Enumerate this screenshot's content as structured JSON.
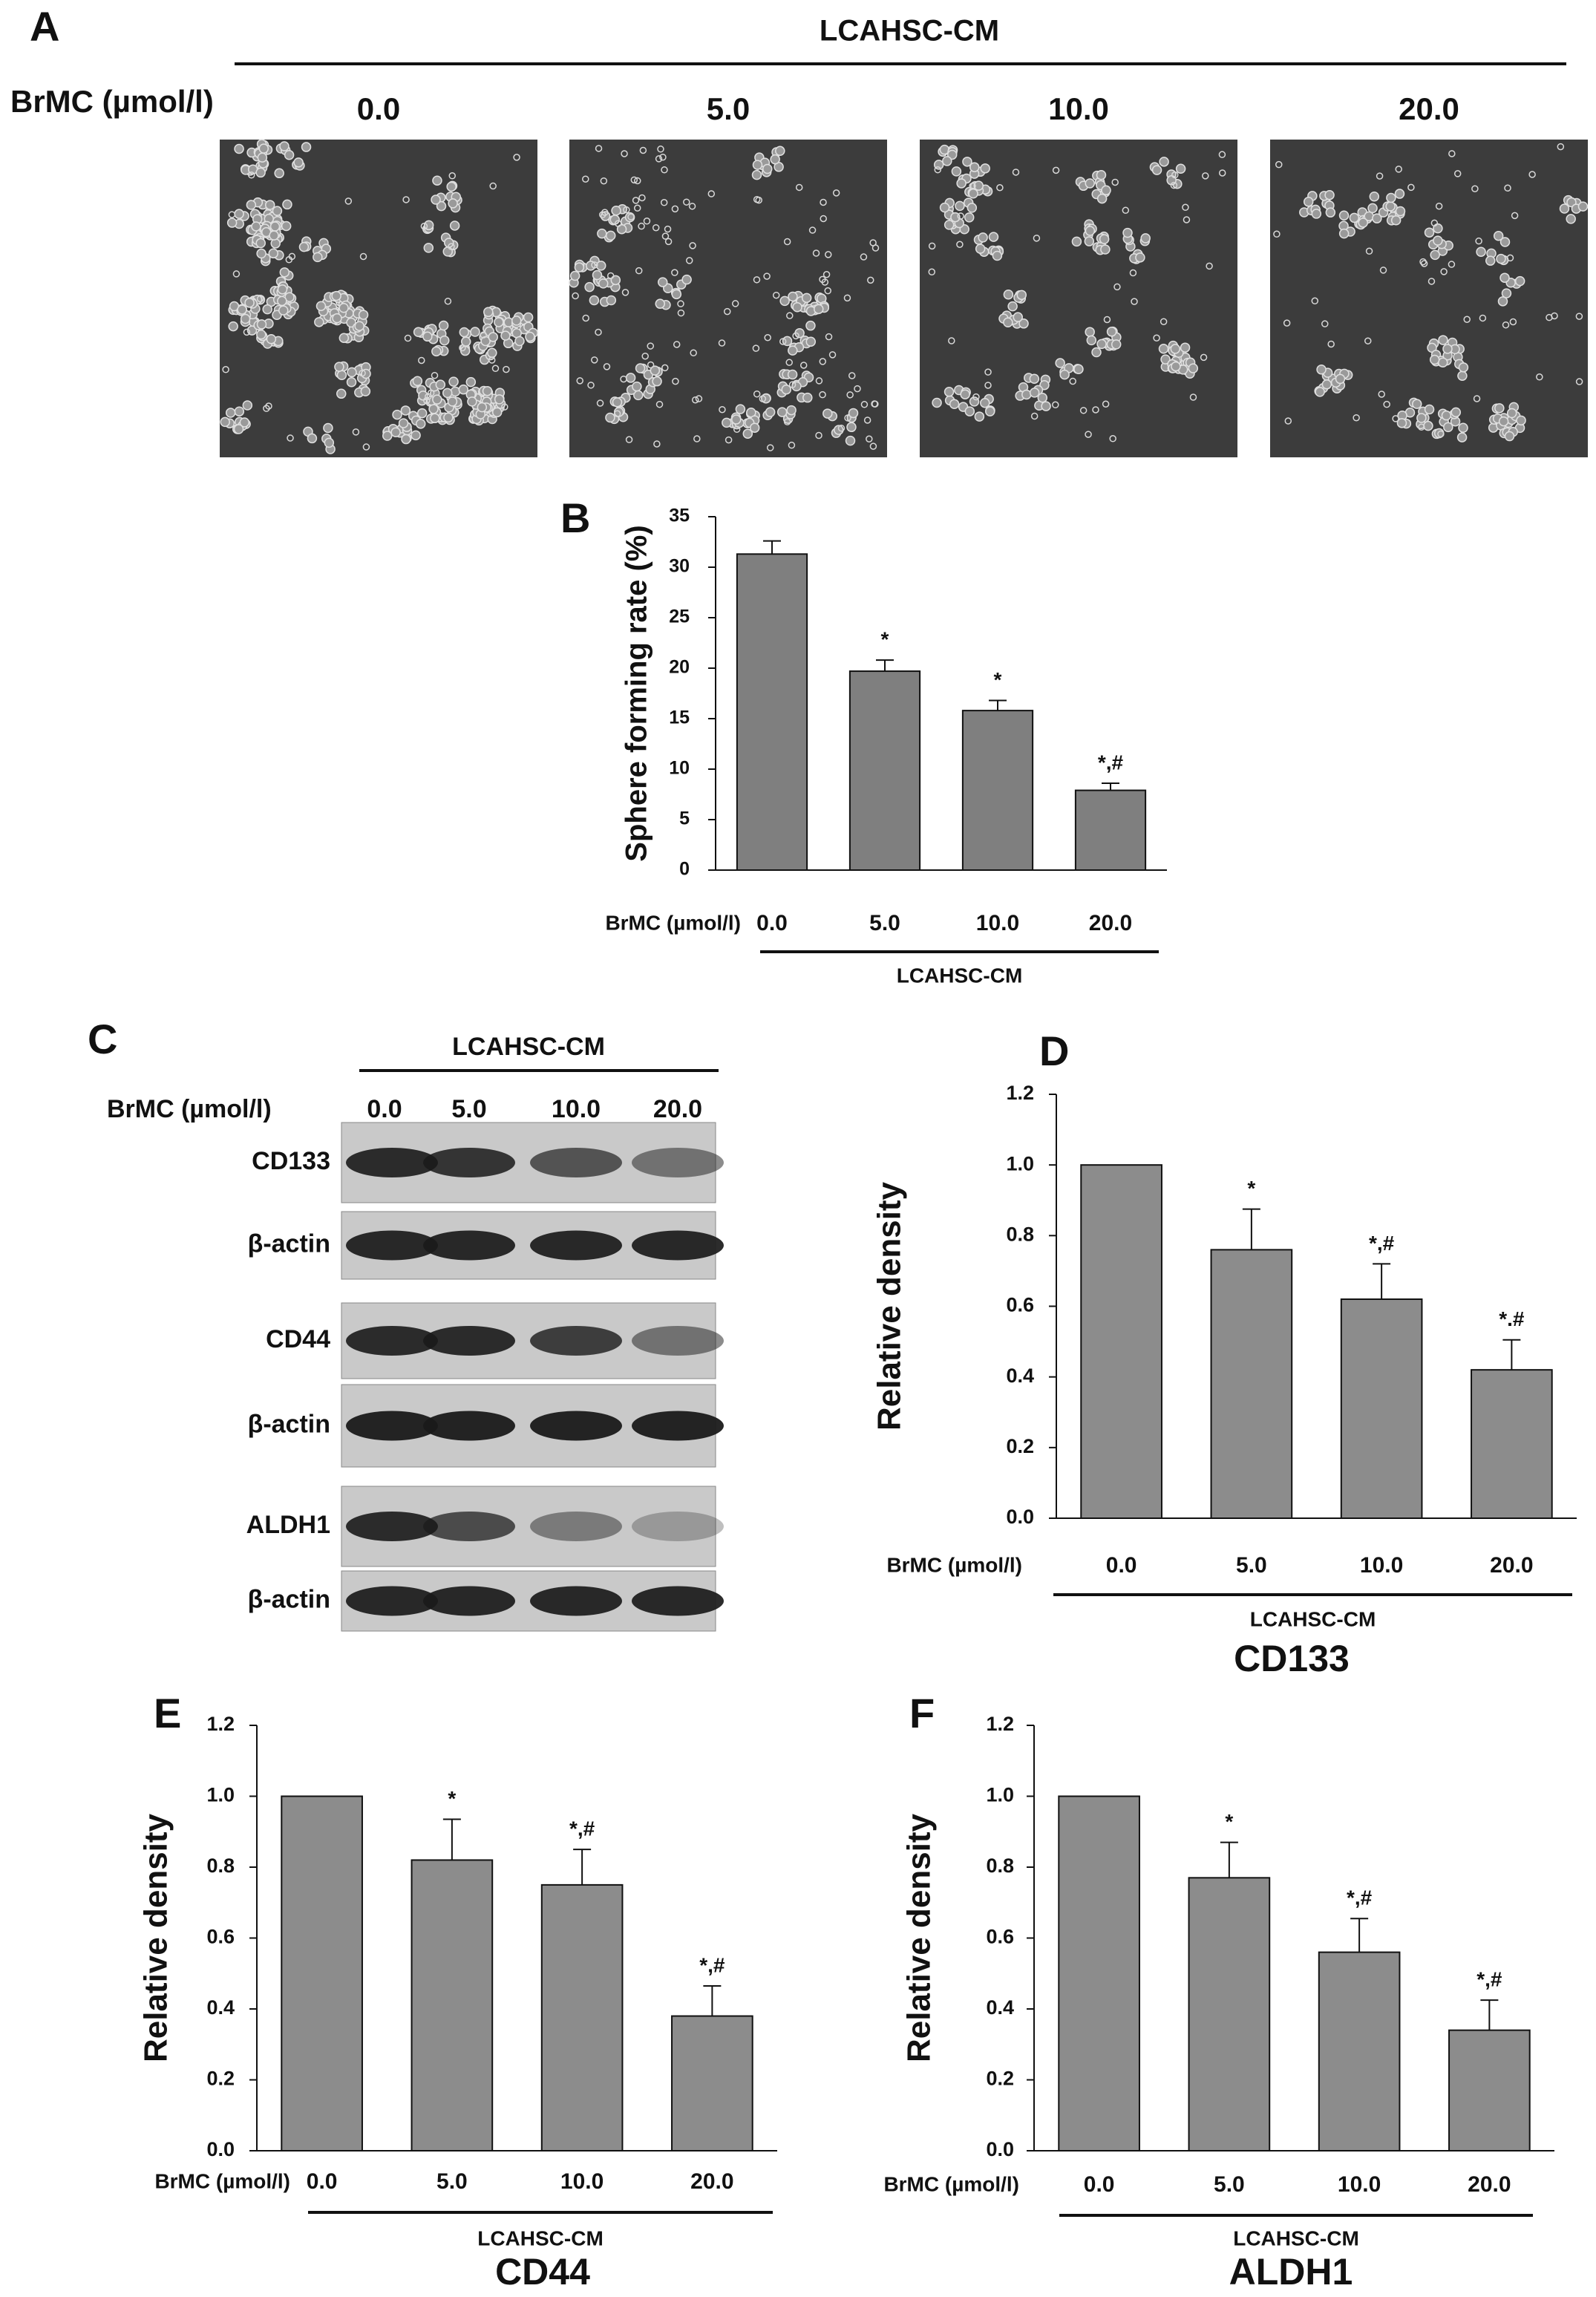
{
  "panel_a": {
    "label": "A",
    "group_label": "LCAHSC-CM",
    "row_label": "BrMC (µmol/l)",
    "concentrations": [
      "0.0",
      "5.0",
      "10.0",
      "20.0"
    ]
  },
  "panel_c": {
    "label": "C",
    "group_label": "LCAHSC-CM",
    "row_label": "BrMC (µmol/l)",
    "concentrations": [
      "0.0",
      "5.0",
      "10.0",
      "20.0"
    ],
    "blot_rows": [
      "CD133",
      "β-actin",
      "CD44",
      "β-actin",
      "ALDH1",
      "β-actin"
    ]
  },
  "chart_data": [
    {
      "type": "bar",
      "panel_label": "B",
      "ylabel": "Sphere forming rate (%)",
      "x_prefix": "BrMC (µmol/l)",
      "group_label": "LCAHSC-CM",
      "categories": [
        "0.0",
        "5.0",
        "10.0",
        "20.0"
      ],
      "values": [
        31.3,
        19.7,
        15.8,
        7.9
      ],
      "errors": [
        1.3,
        1.1,
        1.0,
        0.7
      ],
      "annotations": [
        null,
        "*",
        "*",
        "*,#"
      ],
      "color": "#7f7f7f",
      "ylim": [
        0,
        35
      ],
      "yticks": [
        0,
        5,
        10,
        15,
        20,
        25,
        30,
        35
      ]
    },
    {
      "type": "bar",
      "panel_label": "D",
      "title": "CD133",
      "ylabel": "Relative density",
      "x_prefix": "BrMC (µmol/l)",
      "group_label": "LCAHSC-CM",
      "categories": [
        "0.0",
        "5.0",
        "10.0",
        "20.0"
      ],
      "values": [
        1.0,
        0.76,
        0.62,
        0.42
      ],
      "errors": [
        null,
        0.115,
        0.1,
        0.085
      ],
      "annotations": [
        null,
        "*",
        "*,#",
        "*.#"
      ],
      "color": "#8c8c8c",
      "ylim": [
        0,
        1.2
      ],
      "yticks": [
        {
          "value": 0,
          "label": "0.0"
        },
        {
          "value": 0.2,
          "label": "0.2"
        },
        {
          "value": 0.4,
          "label": "0.4"
        },
        {
          "value": 0.6,
          "label": "0.6"
        },
        {
          "value": 0.8,
          "label": "0.8"
        },
        {
          "value": 1.0,
          "label": "1.0"
        },
        {
          "value": 1.2,
          "label": "1.2"
        }
      ]
    },
    {
      "type": "bar",
      "panel_label": "E",
      "title": "CD44",
      "ylabel": "Relative density",
      "x_prefix": "BrMC (µmol/l)",
      "group_label": "LCAHSC-CM",
      "categories": [
        "0.0",
        "5.0",
        "10.0",
        "20.0"
      ],
      "values": [
        1.0,
        0.82,
        0.75,
        0.38
      ],
      "errors": [
        null,
        0.115,
        0.1,
        0.085
      ],
      "annotations": [
        null,
        "*",
        "*,#",
        "*,#"
      ],
      "color": "#8c8c8c",
      "ylim": [
        0,
        1.2
      ],
      "yticks": [
        {
          "value": 0,
          "label": "0.0"
        },
        {
          "value": 0.2,
          "label": "0.2"
        },
        {
          "value": 0.4,
          "label": "0.4"
        },
        {
          "value": 0.6,
          "label": "0.6"
        },
        {
          "value": 0.8,
          "label": "0.8"
        },
        {
          "value": 1.0,
          "label": "1.0"
        },
        {
          "value": 1.2,
          "label": "1.2"
        }
      ]
    },
    {
      "type": "bar",
      "panel_label": "F",
      "title": "ALDH1",
      "ylabel": "Relative density",
      "x_prefix": "BrMC (µmol/l)",
      "group_label": "LCAHSC-CM",
      "categories": [
        "0.0",
        "5.0",
        "10.0",
        "20.0"
      ],
      "values": [
        1.0,
        0.77,
        0.56,
        0.34
      ],
      "errors": [
        null,
        0.1,
        0.095,
        0.085
      ],
      "annotations": [
        null,
        "*",
        "*,#",
        "*,#"
      ],
      "color": "#8c8c8c",
      "ylim": [
        0,
        1.2
      ],
      "yticks": [
        {
          "value": 0,
          "label": "0.0"
        },
        {
          "value": 0.2,
          "label": "0.2"
        },
        {
          "value": 0.4,
          "label": "0.4"
        },
        {
          "value": 0.6,
          "label": "0.6"
        },
        {
          "value": 0.8,
          "label": "0.8"
        },
        {
          "value": 1.0,
          "label": "1.0"
        },
        {
          "value": 1.2,
          "label": "1.2"
        }
      ]
    }
  ]
}
